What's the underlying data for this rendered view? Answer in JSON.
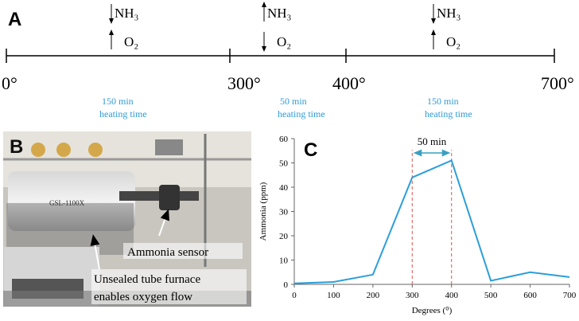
{
  "panel_a": {
    "label": "A",
    "ticks": [
      "0°",
      "300°",
      "400°",
      "700°"
    ],
    "stages": [
      {
        "nh3": "NH₃",
        "o2": "O₂",
        "time": "150 min",
        "note": "heating time"
      },
      {
        "nh3": "NH₃",
        "o2": "O₂",
        "time": "50 min",
        "note": "heating time"
      },
      {
        "nh3": "NH₃",
        "o2": "O₂",
        "time": "150 min",
        "note": "heating time"
      }
    ]
  },
  "panel_b": {
    "label": "B",
    "model": "GSL-1100X",
    "sensor": "Ammonia sensor",
    "caption": [
      "Unsealed tube furnace",
      "enables oxygen flow"
    ]
  },
  "chart_data": {
    "type": "line",
    "title": "C",
    "x_label": "Degrees (⁰)",
    "y_label": "Ammonia (ppm)",
    "x": [
      0,
      100,
      200,
      300,
      400,
      500,
      600,
      700
    ],
    "values": [
      0.4,
      1,
      4,
      44,
      51,
      1.5,
      5,
      3
    ],
    "color": "#2b9fd9",
    "xlim": [
      0,
      700
    ],
    "ylim": [
      0,
      60
    ],
    "xticks": [
      0,
      100,
      200,
      300,
      400,
      500,
      600,
      700
    ],
    "yticks": [
      0,
      10,
      20,
      30,
      40,
      50,
      60
    ],
    "reference_lines": [
      300,
      400
    ],
    "reference_color": "#e0524f",
    "annotation": "50 min"
  }
}
